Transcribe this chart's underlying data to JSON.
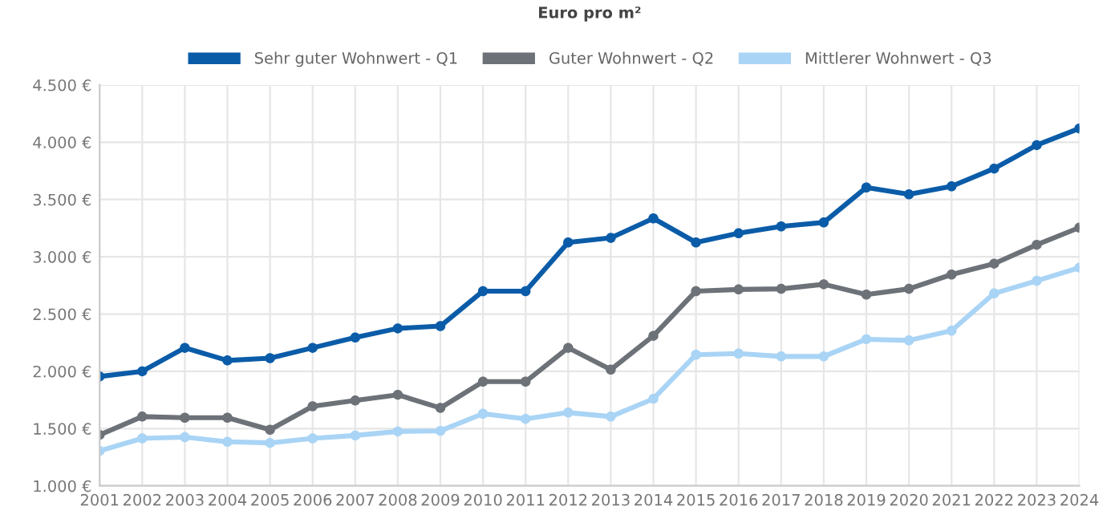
{
  "chart_data": {
    "type": "line",
    "title": "Euro pro m²",
    "categories": [
      "2001",
      "2002",
      "2003",
      "2004",
      "2005",
      "2006",
      "2007",
      "2008",
      "2009",
      "2010",
      "2011",
      "2012",
      "2013",
      "2014",
      "2015",
      "2016",
      "2017",
      "2018",
      "2019",
      "2020",
      "2021",
      "2022",
      "2023",
      "2024"
    ],
    "series": [
      {
        "name": "Sehr guter Wohnwert - Q1",
        "color": "#0b5ca8",
        "values": [
          1955,
          2000,
          2205,
          2095,
          2115,
          2205,
          2295,
          2375,
          2395,
          2700,
          2700,
          3125,
          3165,
          3335,
          3125,
          3205,
          3265,
          3300,
          3605,
          3545,
          3615,
          3770,
          3975,
          4120
        ]
      },
      {
        "name": "Guter Wohnwert - Q2",
        "color": "#6d7278",
        "values": [
          1445,
          1605,
          1595,
          1595,
          1490,
          1695,
          1745,
          1795,
          1680,
          1910,
          1910,
          2205,
          2015,
          2310,
          2700,
          2715,
          2720,
          2760,
          2670,
          2720,
          2845,
          2940,
          3105,
          3255
        ]
      },
      {
        "name": "Mittlerer Wohnwert - Q3",
        "color": "#a9d4f5",
        "values": [
          1305,
          1415,
          1425,
          1385,
          1375,
          1415,
          1440,
          1475,
          1480,
          1630,
          1585,
          1640,
          1605,
          1760,
          2145,
          2155,
          2130,
          2130,
          2280,
          2270,
          2355,
          2680,
          2790,
          2905
        ]
      }
    ],
    "ylim": [
      1000,
      4500
    ],
    "yticks": [
      {
        "value": 1000,
        "label": "1.000 €"
      },
      {
        "value": 1500,
        "label": "1.500 €"
      },
      {
        "value": 2000,
        "label": "2.000 €"
      },
      {
        "value": 2500,
        "label": "2.500 €"
      },
      {
        "value": 3000,
        "label": "3.000 €"
      },
      {
        "value": 3500,
        "label": "3.500 €"
      },
      {
        "value": 4000,
        "label": "4.000 €"
      },
      {
        "value": 4500,
        "label": "4.500 €"
      }
    ],
    "grid": true,
    "legend": "top",
    "marker": "circle",
    "line_style": "solid"
  }
}
